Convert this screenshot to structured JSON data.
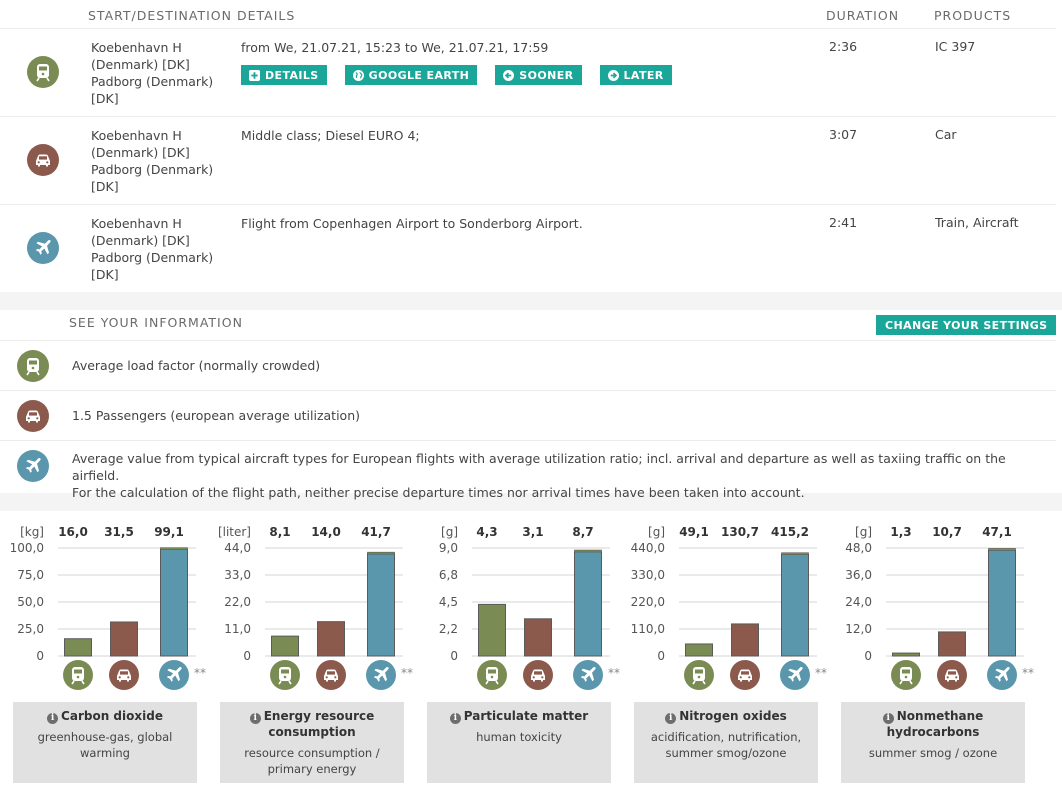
{
  "routes": {
    "headers": {
      "details": "START/DESTINATION DETAILS",
      "duration": "DURATION",
      "products": "PRODUCTS"
    },
    "rows": [
      {
        "mode": "train",
        "icon": "train-icon",
        "places": [
          "Koebenhavn H",
          "(Denmark) [DK]",
          "Padborg (Denmark)",
          "[DK]"
        ],
        "description": "from We, 21.07.21, 15:23 to We, 21.07.21, 17:59",
        "duration": "2:36",
        "products": "IC 397",
        "buttons": [
          {
            "label": "DETAILS",
            "icon": "plus-square-icon"
          },
          {
            "label": "GOOGLE EARTH",
            "icon": "globe-icon"
          },
          {
            "label": "SOONER",
            "icon": "arrow-left-circle-icon"
          },
          {
            "label": "LATER",
            "icon": "arrow-right-circle-icon"
          }
        ]
      },
      {
        "mode": "car",
        "icon": "car-icon",
        "places": [
          "Koebenhavn H",
          "(Denmark) [DK]",
          "Padborg (Denmark)",
          "[DK]"
        ],
        "description": "Middle class; Diesel EURO 4;",
        "duration": "3:07",
        "products": "Car"
      },
      {
        "mode": "plane",
        "icon": "plane-icon",
        "places": [
          "Koebenhavn H",
          "(Denmark) [DK]",
          "Padborg (Denmark)",
          "[DK]"
        ],
        "description": "Flight from Copenhagen Airport to Sonderborg Airport.",
        "duration": "2:41",
        "products": "Train, Aircraft"
      }
    ]
  },
  "info": {
    "header": "SEE YOUR INFORMATION",
    "settings_button": "CHANGE YOUR SETTINGS",
    "rows": [
      {
        "mode": "train",
        "lines": [
          "Average load factor (normally crowded)"
        ]
      },
      {
        "mode": "car",
        "lines": [
          "1.5 Passengers (european average utilization)"
        ]
      },
      {
        "mode": "plane",
        "lines": [
          "Average value from typical aircraft types for European flights with average utilization ratio; incl. arrival and departure as well as taxiing traffic on the airfield.",
          "For the calculation of the flight path, neither precise departure times nor arrival times have been taken into account."
        ]
      }
    ]
  },
  "colors": {
    "train": "#7b8b54",
    "car": "#8b5a4d",
    "plane": "#5b97ac",
    "accent": "#1aa79a",
    "caption_bg": "#e1e1e1"
  },
  "footnote_marker": "**",
  "chart_data": [
    {
      "type": "bar",
      "title": "Carbon dioxide",
      "subtitle": "greenhouse-gas, global warming",
      "unit": "[kg]",
      "categories": [
        "train",
        "car",
        "plane"
      ],
      "value_labels": [
        "16,0",
        "31,5",
        "99,1"
      ],
      "values": [
        16.0,
        31.5,
        99.1
      ],
      "stacked_top_segment": [
        0,
        0,
        1.2
      ],
      "yticks": [
        "0",
        "25,0",
        "50,0",
        "75,0",
        "100,0"
      ],
      "ylim": [
        0,
        100
      ]
    },
    {
      "type": "bar",
      "title": "Energy resource consumption",
      "subtitle": "resource consumption / primary energy",
      "unit": "[liter]",
      "categories": [
        "train",
        "car",
        "plane"
      ],
      "value_labels": [
        "8,1",
        "14,0",
        "41,7"
      ],
      "values": [
        8.1,
        14.0,
        41.7
      ],
      "stacked_top_segment": [
        0,
        0,
        0.6
      ],
      "yticks": [
        "0",
        "11,0",
        "22,0",
        "33,0",
        "44,0"
      ],
      "ylim": [
        0,
        44
      ]
    },
    {
      "type": "bar",
      "title": "Particulate matter",
      "subtitle": "human toxicity",
      "unit": "[g]",
      "categories": [
        "train",
        "car",
        "plane"
      ],
      "value_labels": [
        "4,3",
        "3,1",
        "8,7"
      ],
      "values": [
        4.3,
        3.1,
        8.7
      ],
      "stacked_top_segment": [
        0,
        0,
        0.13
      ],
      "yticks": [
        "0",
        "2,2",
        "4,5",
        "6,8",
        "9,0"
      ],
      "ylim": [
        0,
        9
      ]
    },
    {
      "type": "bar",
      "title": "Nitrogen oxides",
      "subtitle": "acidification, nutrification, summer smog/ozone",
      "unit": "[g]",
      "categories": [
        "train",
        "car",
        "plane"
      ],
      "value_labels": [
        "49,1",
        "130,7",
        "415,2"
      ],
      "values": [
        49.1,
        130.7,
        415.2
      ],
      "stacked_top_segment": [
        0,
        0,
        5.5
      ],
      "yticks": [
        "0",
        "110,0",
        "220,0",
        "330,0",
        "440,0"
      ],
      "ylim": [
        0,
        440
      ]
    },
    {
      "type": "bar",
      "title": "Nonmethane hydrocarbons",
      "subtitle": "summer smog / ozone",
      "unit": "[g]",
      "categories": [
        "train",
        "car",
        "plane"
      ],
      "value_labels": [
        "1,3",
        "10,7",
        "47,1"
      ],
      "values": [
        1.3,
        10.7,
        47.1
      ],
      "stacked_top_segment": [
        0,
        0,
        0.7
      ],
      "yticks": [
        "0",
        "12,0",
        "24,0",
        "36,0",
        "48,0"
      ],
      "ylim": [
        0,
        48
      ]
    }
  ]
}
